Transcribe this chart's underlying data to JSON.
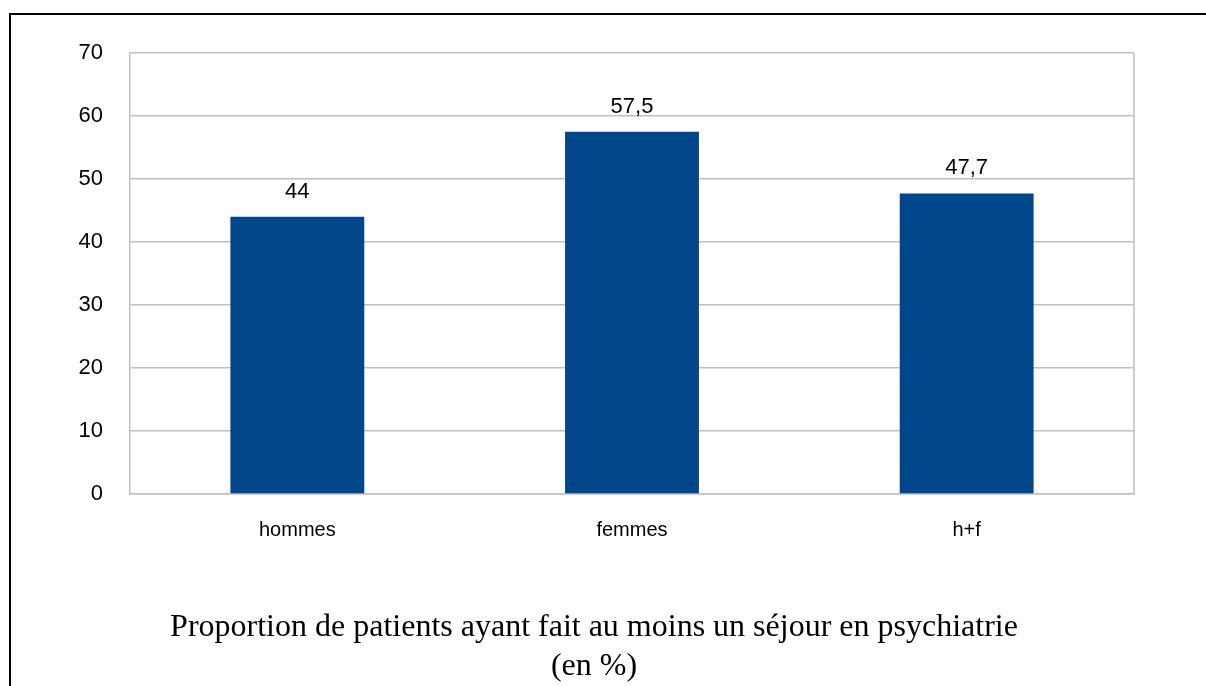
{
  "chart_data": {
    "type": "bar",
    "title": "Proportion de patients ayant fait au moins un séjour en psychiatrie\n(en %)",
    "categories": [
      "hommes",
      "femmes",
      "h+f"
    ],
    "values": [
      44,
      57.5,
      47.7
    ],
    "value_labels": [
      "44",
      "57,5",
      "47,7"
    ],
    "color": "#00468a",
    "ylim": [
      0,
      70
    ],
    "yticks": [
      0,
      10,
      20,
      30,
      40,
      50,
      60,
      70
    ],
    "grid": "y"
  }
}
